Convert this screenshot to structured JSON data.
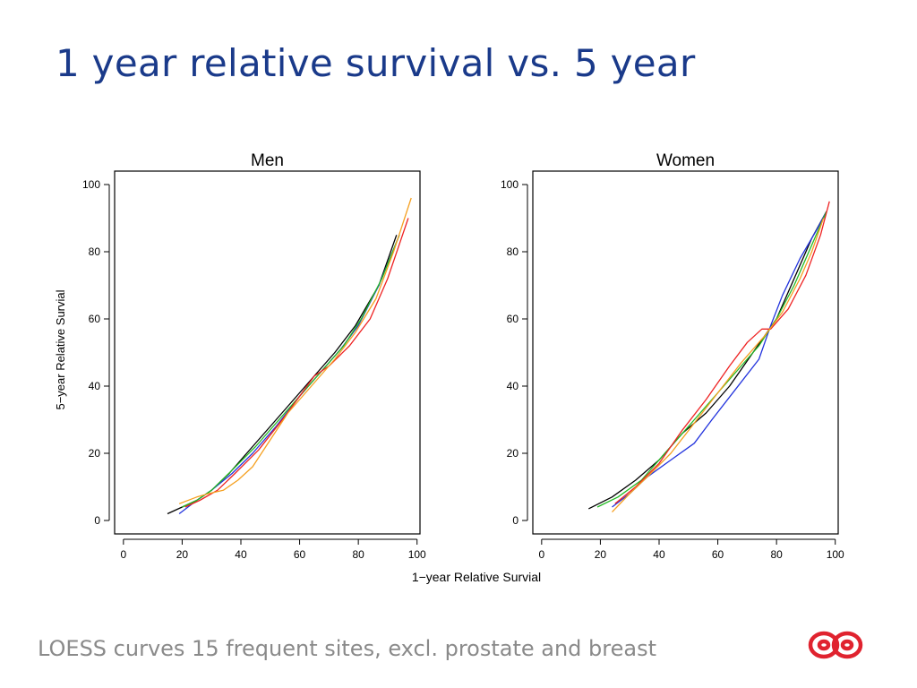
{
  "slide": {
    "title": "1 year relative survival vs. 5 year",
    "footer": "LOESS curves 15 frequent sites, excl. prostate and breast"
  },
  "colors": {
    "title": "#1a3a8a",
    "footer": "#8a8a8a",
    "logo": "#e0232f",
    "series": [
      "#000000",
      "#2233dd",
      "#22bb22",
      "#ee2222",
      "#f5a020"
    ]
  },
  "icons": {
    "logo": "double-ring-logo-icon"
  },
  "chart_data": [
    {
      "type": "line",
      "title": "Men",
      "xlabel": "1−year Relative Survial",
      "ylabel": "5−year Relative Survial",
      "xlim": [
        -3,
        101
      ],
      "ylim": [
        -4,
        104
      ],
      "xticks": [
        0,
        20,
        40,
        60,
        80,
        100
      ],
      "yticks": [
        0,
        20,
        40,
        60,
        80,
        100
      ],
      "grid": false,
      "series": [
        {
          "color": "#000000",
          "points": [
            [
              15,
              2
            ],
            [
              20,
              4
            ],
            [
              25,
              6
            ],
            [
              30,
              9
            ],
            [
              36,
              14
            ],
            [
              42,
              20
            ],
            [
              50,
              28
            ],
            [
              58,
              36
            ],
            [
              66,
              44
            ],
            [
              72,
              50
            ],
            [
              79,
              58
            ],
            [
              87,
              70
            ],
            [
              93,
              85
            ]
          ]
        },
        {
          "color": "#2233dd",
          "points": [
            [
              19,
              2
            ],
            [
              25,
              6
            ],
            [
              30,
              9
            ],
            [
              37,
              14
            ],
            [
              44,
              20
            ],
            [
              52,
              28
            ],
            [
              60,
              37
            ],
            [
              67,
              44
            ],
            [
              74,
              51
            ],
            [
              80,
              58
            ],
            [
              87,
              70
            ],
            [
              94,
              85
            ]
          ]
        },
        {
          "color": "#22bb22",
          "points": [
            [
              20,
              4
            ],
            [
              25,
              6
            ],
            [
              30,
              9
            ],
            [
              37,
              15
            ],
            [
              45,
              22
            ],
            [
              53,
              30
            ],
            [
              61,
              38
            ],
            [
              68,
              45
            ],
            [
              75,
              52
            ],
            [
              81,
              60
            ],
            [
              88,
              72
            ],
            [
              94,
              85
            ]
          ]
        },
        {
          "color": "#ee2222",
          "points": [
            [
              21,
              4
            ],
            [
              26,
              6
            ],
            [
              32,
              9
            ],
            [
              38,
              14
            ],
            [
              46,
              21
            ],
            [
              55,
              31
            ],
            [
              65,
              43
            ],
            [
              70,
              46
            ],
            [
              77,
              52
            ],
            [
              84,
              60
            ],
            [
              90,
              72
            ],
            [
              97,
              90
            ]
          ]
        },
        {
          "color": "#f5a020",
          "points": [
            [
              19,
              5
            ],
            [
              25,
              7
            ],
            [
              29,
              8
            ],
            [
              34,
              9
            ],
            [
              39,
              12
            ],
            [
              44,
              16
            ],
            [
              50,
              24
            ],
            [
              56,
              32
            ],
            [
              64,
              40
            ],
            [
              72,
              48
            ],
            [
              79,
              56
            ],
            [
              86,
              66
            ],
            [
              92,
              80
            ],
            [
              98,
              96
            ]
          ]
        }
      ]
    },
    {
      "type": "line",
      "title": "Women",
      "xlabel": "",
      "ylabel": "",
      "xlim": [
        -3,
        101
      ],
      "ylim": [
        -4,
        104
      ],
      "xticks": [
        0,
        20,
        40,
        60,
        80,
        100
      ],
      "yticks": [
        0,
        20,
        40,
        60,
        80,
        100
      ],
      "grid": false,
      "series": [
        {
          "color": "#000000",
          "points": [
            [
              16,
              3.5
            ],
            [
              24,
              7
            ],
            [
              32,
              12
            ],
            [
              40,
              18
            ],
            [
              48,
              26
            ],
            [
              56,
              32
            ],
            [
              64,
              40
            ],
            [
              72,
              50
            ],
            [
              80,
              60
            ],
            [
              86,
              72
            ],
            [
              92,
              84
            ],
            [
              97,
              92
            ]
          ]
        },
        {
          "color": "#2233dd",
          "points": [
            [
              24,
              4
            ],
            [
              30,
              8
            ],
            [
              36,
              13
            ],
            [
              44,
              18
            ],
            [
              52,
              23
            ],
            [
              58,
              30
            ],
            [
              66,
              39
            ],
            [
              74,
              48
            ],
            [
              78,
              58
            ],
            [
              82,
              67
            ],
            [
              88,
              78
            ],
            [
              94,
              87
            ],
            [
              97,
              92
            ]
          ]
        },
        {
          "color": "#22bb22",
          "points": [
            [
              19,
              4
            ],
            [
              26,
              7
            ],
            [
              34,
              12
            ],
            [
              42,
              20
            ],
            [
              50,
              28
            ],
            [
              58,
              36
            ],
            [
              66,
              44
            ],
            [
              74,
              52
            ],
            [
              80,
              60
            ],
            [
              86,
              70
            ],
            [
              92,
              82
            ],
            [
              97,
              92
            ]
          ]
        },
        {
          "color": "#ee2222",
          "points": [
            [
              25,
              5
            ],
            [
              32,
              10
            ],
            [
              40,
              17
            ],
            [
              48,
              27
            ],
            [
              56,
              36
            ],
            [
              64,
              46
            ],
            [
              70,
              53
            ],
            [
              75,
              57
            ],
            [
              78,
              57
            ],
            [
              84,
              63
            ],
            [
              90,
              73
            ],
            [
              95,
              85
            ],
            [
              98,
              95
            ]
          ]
        },
        {
          "color": "#f5a020",
          "points": [
            [
              24,
              2.5
            ],
            [
              30,
              8
            ],
            [
              36,
              13
            ],
            [
              44,
              20
            ],
            [
              52,
              29
            ],
            [
              60,
              38
            ],
            [
              68,
              47
            ],
            [
              76,
              55
            ],
            [
              82,
              62
            ],
            [
              88,
              72
            ],
            [
              92,
              80
            ],
            [
              96,
              90
            ]
          ]
        }
      ]
    }
  ]
}
